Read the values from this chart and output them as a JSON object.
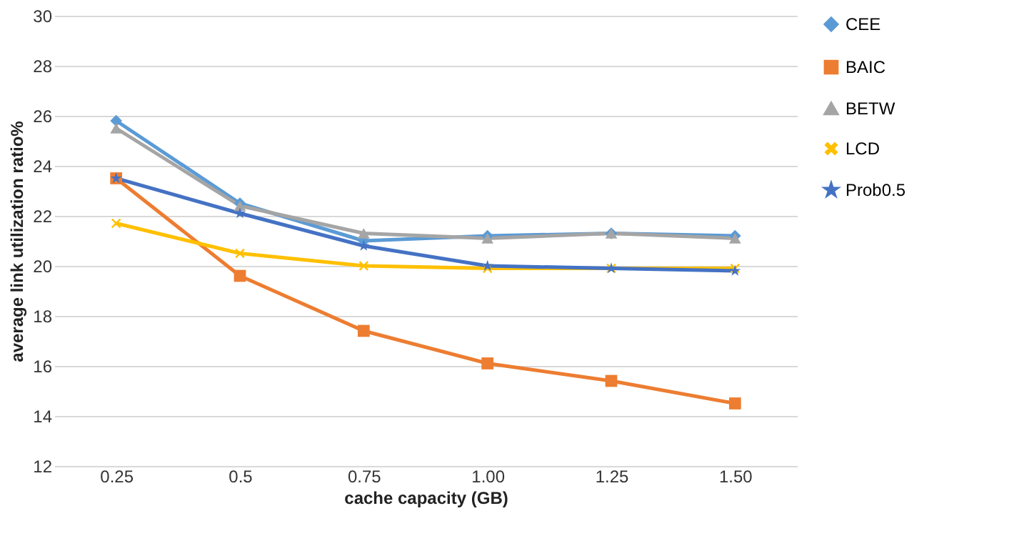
{
  "chart_data": {
    "type": "line",
    "xlabel": "cache capacity (GB)",
    "ylabel": "average link utilization ratio%",
    "categories": [
      "0.25",
      "0.5",
      "0.75",
      "1.00",
      "1.25",
      "1.50"
    ],
    "ylim": [
      12,
      30
    ],
    "yticks": [
      12,
      14,
      16,
      18,
      20,
      22,
      24,
      26,
      28,
      30
    ],
    "grid": "y",
    "legend": "right",
    "series": [
      {
        "name": "CEE",
        "color": "#5b9bd5",
        "marker": "diamond",
        "values": [
          25.8,
          22.5,
          21.0,
          21.2,
          21.3,
          21.2
        ]
      },
      {
        "name": "BAIC",
        "color": "#ed7d31",
        "marker": "square",
        "values": [
          23.5,
          19.6,
          17.4,
          16.1,
          15.4,
          14.5
        ]
      },
      {
        "name": "BETW",
        "color": "#a5a5a5",
        "marker": "triangle",
        "values": [
          25.5,
          22.4,
          21.3,
          21.1,
          21.3,
          21.1
        ]
      },
      {
        "name": "LCD",
        "color": "#ffc000",
        "marker": "cross",
        "values": [
          21.7,
          20.5,
          20.0,
          19.9,
          19.9,
          19.9
        ]
      },
      {
        "name": "Prob0.5",
        "color": "#4472c4",
        "marker": "star",
        "values": [
          23.5,
          22.1,
          20.8,
          20.0,
          19.9,
          19.8
        ]
      }
    ]
  }
}
